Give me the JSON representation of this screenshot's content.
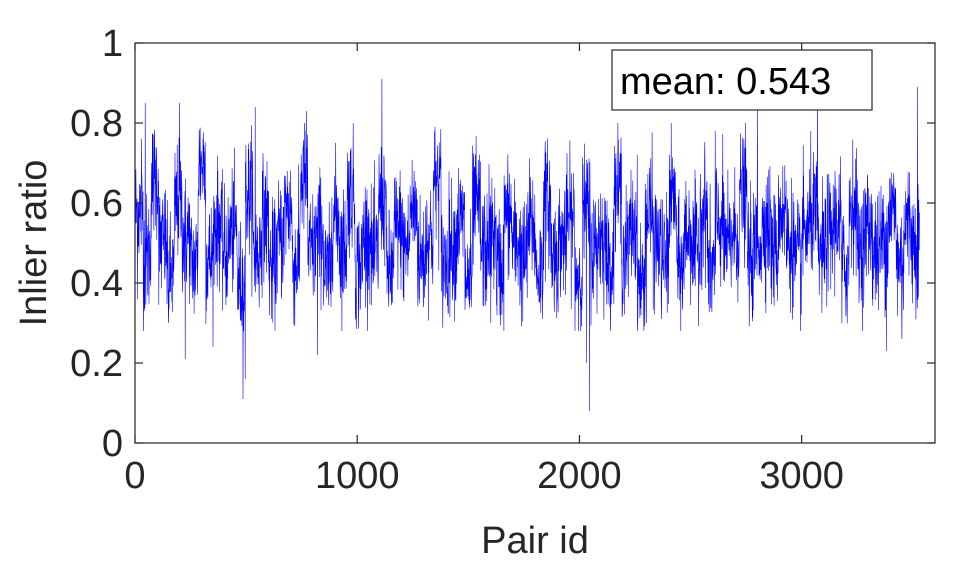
{
  "chart_data": {
    "type": "line",
    "xlabel": "Pair id",
    "ylabel": "Inlier ratio",
    "xlim": [
      0,
      3600
    ],
    "ylim": [
      0,
      1
    ],
    "xticks": [
      0,
      1000,
      2000,
      3000
    ],
    "yticks": [
      0,
      0.2,
      0.4,
      0.6,
      0.8,
      1
    ],
    "xtick_labels": [
      "0",
      "1000",
      "2000",
      "3000"
    ],
    "ytick_labels": [
      "0",
      "0.2",
      "0.4",
      "0.6",
      "0.8",
      "1"
    ],
    "annotation": "mean: 0.543",
    "grid": false,
    "colors": {
      "series": "#0000ff",
      "axes": "#262626",
      "text": "#262626"
    },
    "series": [
      {
        "n_points": 3530,
        "values": [
          0.58,
          0.47,
          0.66,
          0.5,
          0.42,
          0.6,
          0.52,
          0.45,
          0.7,
          0.46,
          0.55,
          0.48,
          0.53,
          0.4,
          0.62,
          0.47,
          0.56,
          0.44,
          0.51,
          0.59,
          0.45,
          0.66,
          0.48,
          0.53,
          0.42,
          0.57,
          0.49,
          0.63,
          0.44,
          0.52,
          0.47,
          0.61,
          0.43,
          0.54,
          0.49,
          0.58,
          0.46,
          0.52,
          0.65,
          0.45,
          0.5,
          0.55,
          0.41,
          0.59,
          0.48,
          0.53,
          0.44,
          0.57,
          0.5,
          0.46,
          0.54,
          0.43,
          0.6,
          0.47,
          0.51,
          0.56,
          0.42,
          0.58,
          0.49,
          0.52,
          0.45,
          0.63,
          0.48,
          0.54,
          0.4,
          0.57,
          0.5,
          0.46,
          0.61,
          0.44,
          0.53,
          0.48,
          0.58,
          0.43,
          0.55,
          0.49,
          0.52,
          0.62,
          0.46,
          0.51,
          0.55,
          0.48,
          0.58,
          0.5,
          0.45,
          0.53,
          0.57,
          0.47,
          0.52,
          0.56,
          0.44,
          0.6,
          0.49,
          0.54,
          0.47,
          0.51,
          0.58,
          0.46,
          0.55,
          0.5
        ]
      }
    ],
    "features": [
      {
        "x": 10,
        "y": 0.36
      },
      {
        "x": 28,
        "y": 0.76
      },
      {
        "x": 45,
        "y": 0.85
      },
      {
        "x": 150,
        "y": 0.3
      },
      {
        "x": 200,
        "y": 0.85
      },
      {
        "x": 225,
        "y": 0.21
      },
      {
        "x": 350,
        "y": 0.24
      },
      {
        "x": 485,
        "y": 0.11
      },
      {
        "x": 495,
        "y": 0.16
      },
      {
        "x": 540,
        "y": 0.84
      },
      {
        "x": 755,
        "y": 0.74
      },
      {
        "x": 770,
        "y": 0.83
      },
      {
        "x": 820,
        "y": 0.22
      },
      {
        "x": 1110,
        "y": 0.91
      },
      {
        "x": 1600,
        "y": 0.3
      },
      {
        "x": 2030,
        "y": 0.2
      },
      {
        "x": 2045,
        "y": 0.08
      },
      {
        "x": 2300,
        "y": 0.3
      },
      {
        "x": 2610,
        "y": 0.78
      },
      {
        "x": 2800,
        "y": 0.84
      },
      {
        "x": 3070,
        "y": 0.89
      },
      {
        "x": 3180,
        "y": 0.3
      },
      {
        "x": 3380,
        "y": 0.23
      },
      {
        "x": 3450,
        "y": 0.26
      },
      {
        "x": 3520,
        "y": 0.89
      }
    ]
  }
}
